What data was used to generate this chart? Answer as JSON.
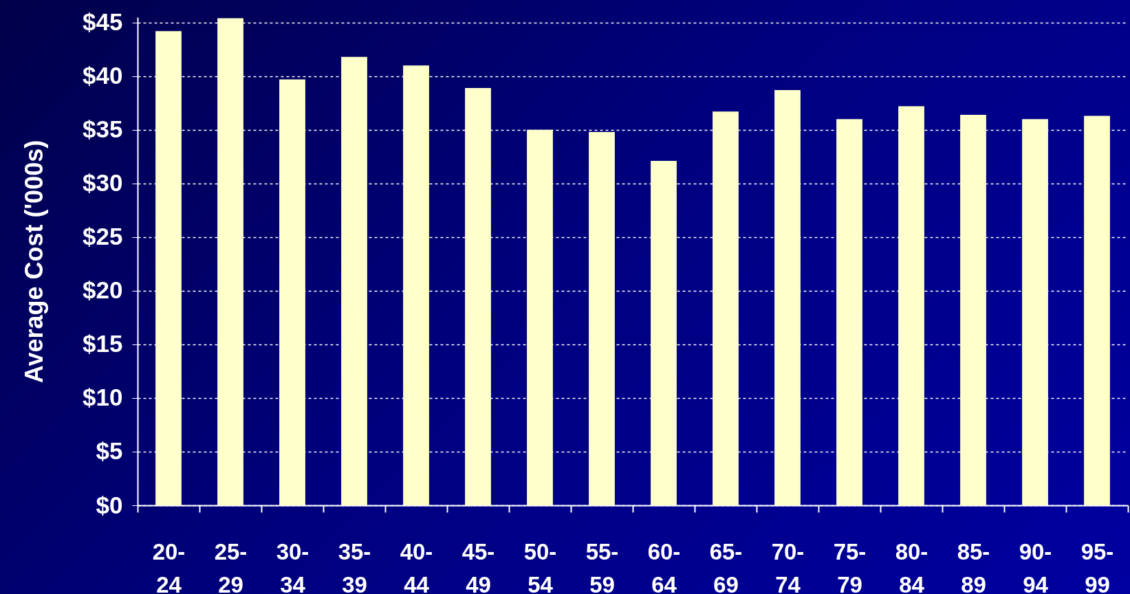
{
  "chart_data": {
    "type": "bar",
    "ylabel": "Average Cost ('000s)",
    "categories": [
      "20-24",
      "25-29",
      "30-34",
      "35-39",
      "40-44",
      "45-49",
      "50-54",
      "55-59",
      "60-64",
      "65-69",
      "70-74",
      "75-79",
      "80-84",
      "85-89",
      "90-94",
      "95-99"
    ],
    "values": [
      44.2,
      45.4,
      39.7,
      41.8,
      41.0,
      38.9,
      35.0,
      34.8,
      32.1,
      36.7,
      38.7,
      36.0,
      37.2,
      36.4,
      36.0,
      36.3
    ],
    "color": "#ffffcc",
    "ylim": [
      0,
      45.5
    ],
    "yticks": [
      {
        "value": 0,
        "label": "$0"
      },
      {
        "value": 5,
        "label": "$5"
      },
      {
        "value": 10,
        "label": "$10"
      },
      {
        "value": 15,
        "label": "$15"
      },
      {
        "value": 20,
        "label": "$20"
      },
      {
        "value": 25,
        "label": "$25"
      },
      {
        "value": 30,
        "label": "$30"
      },
      {
        "value": 35,
        "label": "$35"
      },
      {
        "value": 40,
        "label": "$40"
      },
      {
        "value": 45,
        "label": "$45"
      }
    ],
    "grid": "y"
  }
}
